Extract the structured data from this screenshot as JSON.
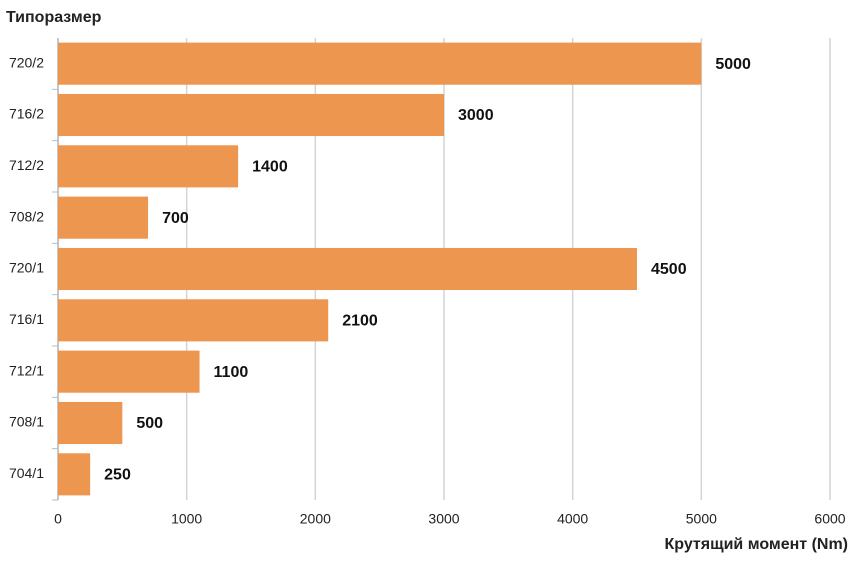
{
  "chart_data": {
    "type": "barh",
    "title": "Типоразмер",
    "x_label": "Крутящий момент (Nm)",
    "categories": [
      "720/2",
      "716/2",
      "712/2",
      "708/2",
      "720/1",
      "716/1",
      "712/1",
      "708/1",
      "704/1"
    ],
    "values": [
      5000,
      3000,
      1400,
      700,
      4500,
      2100,
      1100,
      500,
      250
    ],
    "color": "#ec964f",
    "xlim": [
      0,
      6000
    ],
    "xticks": [
      0,
      1000,
      2000,
      3000,
      4000,
      5000,
      6000
    ],
    "grid": true
  }
}
